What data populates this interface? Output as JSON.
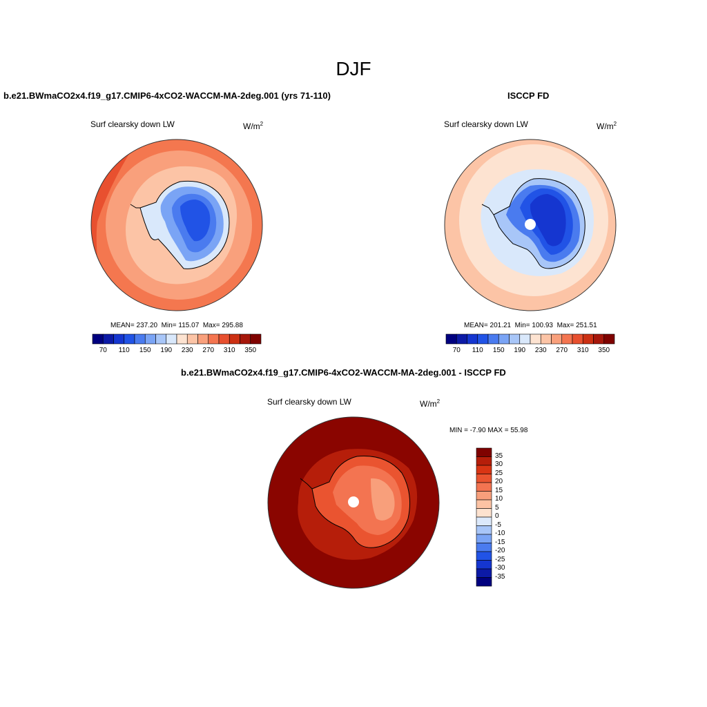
{
  "figure": {
    "season_title": "DJF"
  },
  "colorbar_colors": [
    "#00007f",
    "#0c1aa6",
    "#1536d0",
    "#2153e6",
    "#4a7bef",
    "#7aa4f5",
    "#a8c6f8",
    "#d9e8fb",
    "#fde3d1",
    "#fcc4a6",
    "#f9a07c",
    "#f47550",
    "#e8502f",
    "#cc3013",
    "#a6170b",
    "#7f0200"
  ],
  "diff_colors": [
    "#00007f",
    "#0c1aa6",
    "#1536d0",
    "#2153e6",
    "#4a7bef",
    "#7aa4f5",
    "#a8c6f8",
    "#dce9fb",
    "#fde2cf",
    "#fcc3a4",
    "#f89f7b",
    "#f37451",
    "#ea5430",
    "#d93514",
    "#b61e0a",
    "#7f0200"
  ],
  "chart_data": [
    {
      "type": "heatmap",
      "panel": "model",
      "title": "b.e21.BWmaCO2x4.f19_g17.CMIP6-4xCO2-WACCM-MA-2deg.001 (yrs 71-110)",
      "variable": "Surf clearsky down LW",
      "units_base": "W/m",
      "units_exp": "2",
      "stats": {
        "mean": "237.20",
        "min": "115.07",
        "max": "295.88"
      },
      "stats_labels": {
        "mean": "MEAN=",
        "min": "Min=",
        "max": "Max="
      },
      "colorbar": {
        "orientation": "horizontal",
        "tick_labels": [
          "70",
          "110",
          "150",
          "190",
          "230",
          "270",
          "310",
          "350"
        ],
        "levels": [
          70,
          90,
          110,
          130,
          150,
          170,
          190,
          210,
          230,
          250,
          270,
          290,
          310,
          330,
          350
        ]
      }
    },
    {
      "type": "heatmap",
      "panel": "observation",
      "title": "ISCCP FD",
      "variable": "Surf clearsky down LW",
      "units_base": "W/m",
      "units_exp": "2",
      "stats": {
        "mean": "201.21",
        "min": "100.93",
        "max": "251.51"
      },
      "stats_labels": {
        "mean": "MEAN=",
        "min": "Min=",
        "max": "Max="
      },
      "colorbar": {
        "orientation": "horizontal",
        "tick_labels": [
          "70",
          "110",
          "150",
          "190",
          "230",
          "270",
          "310",
          "350"
        ],
        "levels": [
          70,
          90,
          110,
          130,
          150,
          170,
          190,
          210,
          230,
          250,
          270,
          290,
          310,
          330,
          350
        ]
      }
    },
    {
      "type": "heatmap",
      "panel": "difference",
      "title": "b.e21.BWmaCO2x4.f19_g17.CMIP6-4xCO2-WACCM-MA-2deg.001 - ISCCP FD",
      "variable": "Surf clearsky down LW",
      "units_base": "W/m",
      "units_exp": "2",
      "stats_text": "MIN =  -7.90 MAX =  55.98",
      "colorbar": {
        "orientation": "vertical",
        "tick_labels": [
          "35",
          "30",
          "25",
          "20",
          "15",
          "10",
          "5",
          "0",
          "-5",
          "-10",
          "-15",
          "-20",
          "-25",
          "-30",
          "-35"
        ]
      }
    }
  ]
}
